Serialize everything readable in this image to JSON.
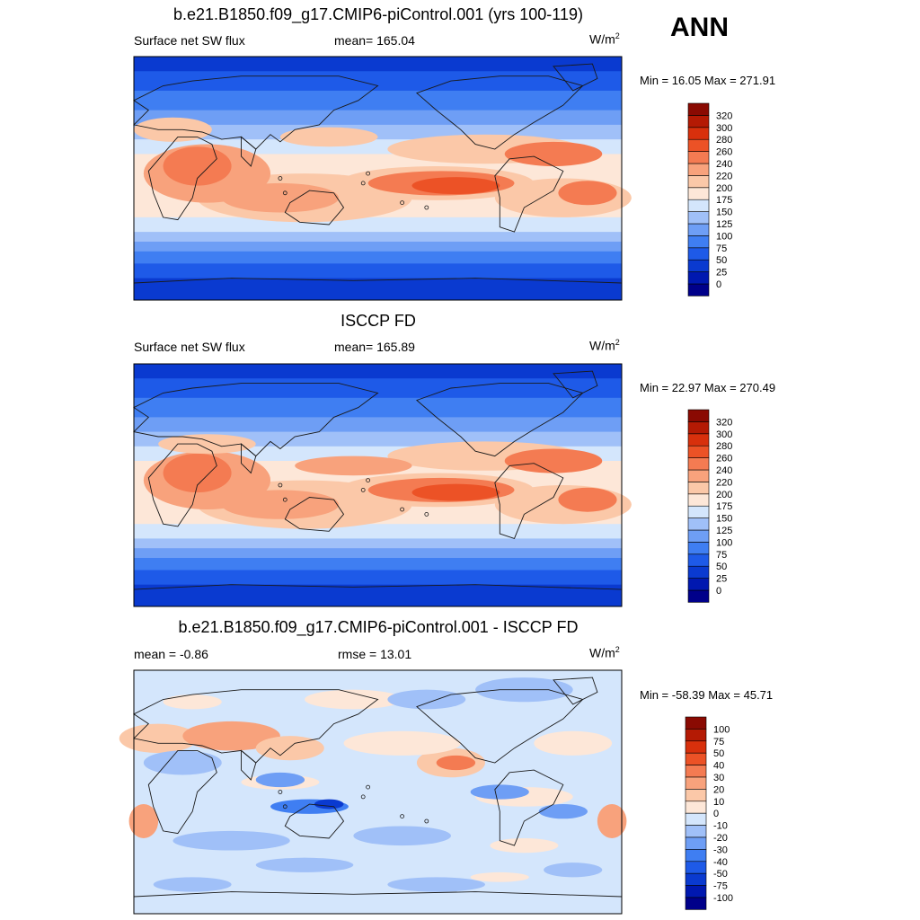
{
  "season": "ANN",
  "panels": [
    {
      "title": "b.e21.B1850.f09_g17.CMIP6-piControl.001 (yrs 100-119)",
      "left_label": "Surface net SW flux",
      "mid_label": "mean= 165.04",
      "units": "W/m",
      "units_sup": "2",
      "minmax": "Min =  16.05 Max = 271.91"
    },
    {
      "title": "ISCCP FD",
      "left_label": "Surface net SW flux",
      "mid_label": "mean= 165.89",
      "units": "W/m",
      "units_sup": "2",
      "minmax": "Min =  22.97 Max = 270.49"
    },
    {
      "title": "b.e21.B1850.f09_g17.CMIP6-piControl.001 - ISCCP FD",
      "left_label": "mean =  -0.86",
      "mid_label": "rmse =  13.01",
      "units": "W/m",
      "units_sup": "2",
      "minmax": "Min = -58.39 Max =  45.71"
    }
  ],
  "chart_data": [
    {
      "type": "heatmap",
      "title": "b.e21.B1850.f09_g17.CMIP6-piControl.001 (yrs 100-119)",
      "variable": "Surface net SW flux",
      "units": "W/m2",
      "mean": 165.04,
      "min": 16.05,
      "max": 271.91,
      "colorbar": {
        "levels": [
          0,
          25,
          50,
          75,
          100,
          125,
          150,
          175,
          200,
          220,
          240,
          260,
          280,
          300,
          320
        ],
        "colors": [
          "#00008a",
          "#0018b0",
          "#0a3ad0",
          "#1e5ae8",
          "#3f7ef2",
          "#6e9ef5",
          "#a0c0f8",
          "#d4e6fc",
          "#fde7d8",
          "#fbc8a8",
          "#f8a27c",
          "#f47b52",
          "#ec5226",
          "#d8300c",
          "#b41a04",
          "#8a0a02"
        ]
      }
    },
    {
      "type": "heatmap",
      "title": "ISCCP FD",
      "variable": "Surface net SW flux",
      "units": "W/m2",
      "mean": 165.89,
      "min": 22.97,
      "max": 270.49,
      "colorbar": {
        "levels": [
          0,
          25,
          50,
          75,
          100,
          125,
          150,
          175,
          200,
          220,
          240,
          260,
          280,
          300,
          320
        ],
        "colors": [
          "#00008a",
          "#0018b0",
          "#0a3ad0",
          "#1e5ae8",
          "#3f7ef2",
          "#6e9ef5",
          "#a0c0f8",
          "#d4e6fc",
          "#fde7d8",
          "#fbc8a8",
          "#f8a27c",
          "#f47b52",
          "#ec5226",
          "#d8300c",
          "#b41a04",
          "#8a0a02"
        ]
      }
    },
    {
      "type": "heatmap",
      "title": "b.e21.B1850.f09_g17.CMIP6-piControl.001 - ISCCP FD",
      "units": "W/m2",
      "mean": -0.86,
      "rmse": 13.01,
      "min": -58.39,
      "max": 45.71,
      "colorbar": {
        "levels": [
          100,
          75,
          50,
          40,
          30,
          20,
          10,
          0,
          -10,
          -20,
          -30,
          -40,
          -50,
          -75,
          -100
        ],
        "colors": [
          "#8a0a02",
          "#b41a04",
          "#d8300c",
          "#ec5226",
          "#f47b52",
          "#f8a27c",
          "#fbc8a8",
          "#fde7d8",
          "#d4e6fc",
          "#a0c0f8",
          "#6e9ef5",
          "#3f7ef2",
          "#1e5ae8",
          "#0a3ad0",
          "#0018b0",
          "#00008a"
        ]
      }
    }
  ]
}
